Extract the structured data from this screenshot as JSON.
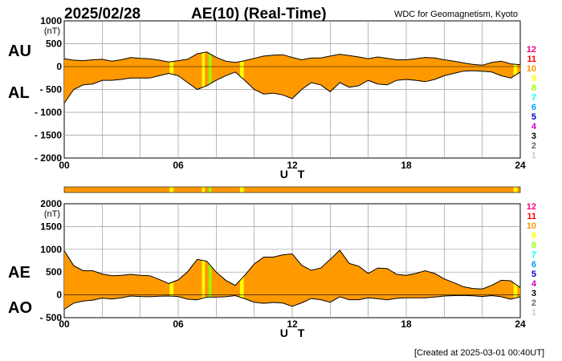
{
  "date": "2025/02/28",
  "title": "AE(10) (Real-Time)",
  "organization": "WDC for Geomagnetism, Kyoto",
  "footer": "[Created at 2025-03-01 00:40UT]",
  "x_axis_label": "U T",
  "x_tick_labels": [
    "00",
    "06",
    "12",
    "18",
    "24"
  ],
  "station_legend": [
    {
      "label": "12",
      "color": "#ff0080"
    },
    {
      "label": "11",
      "color": "#ff0000"
    },
    {
      "label": "10",
      "color": "#ff9900"
    },
    {
      "label": "9",
      "color": "#ffff00"
    },
    {
      "label": "8",
      "color": "#99ff00"
    },
    {
      "label": "7",
      "color": "#00ffff"
    },
    {
      "label": "6",
      "color": "#0099ff"
    },
    {
      "label": "5",
      "color": "#0000cc"
    },
    {
      "label": "4",
      "color": "#cc00cc"
    },
    {
      "label": "3",
      "color": "#000000"
    },
    {
      "label": "2",
      "color": "#666666"
    },
    {
      "label": "1",
      "color": "#cccccc"
    }
  ],
  "colors": {
    "fill_default": "#ff9900",
    "fill_alt": "#ffff00",
    "fill_alt2": "#99ff00",
    "line": "#000000"
  },
  "chart_data": [
    {
      "type": "area",
      "title": "AU / AL",
      "series_labels": [
        "AU",
        "AL"
      ],
      "unit_label": "(nT)",
      "xlabel": "U T",
      "xlim": [
        0,
        24
      ],
      "ylim": [
        -2000,
        1000
      ],
      "y_ticks": [
        1000,
        500,
        0,
        -500,
        -1000,
        -1500,
        -2000
      ],
      "y_tick_labels": [
        "1000",
        "500",
        "0",
        "- 500",
        "- 1000",
        "- 1500",
        "- 2000"
      ],
      "x": [
        0,
        0.5,
        1,
        1.5,
        2,
        2.5,
        3,
        3.5,
        4,
        4.5,
        5,
        5.5,
        6,
        6.5,
        7,
        7.5,
        8,
        8.5,
        9,
        9.5,
        10,
        10.5,
        11,
        11.5,
        12,
        12.5,
        13,
        13.5,
        14,
        14.5,
        15,
        15.5,
        16,
        16.5,
        17,
        17.5,
        18,
        18.5,
        19,
        19.5,
        20,
        20.5,
        21,
        21.5,
        22,
        22.5,
        23,
        23.5,
        24
      ],
      "series": [
        {
          "name": "AU",
          "values": [
            170,
            140,
            130,
            150,
            160,
            120,
            150,
            200,
            180,
            170,
            140,
            100,
            130,
            160,
            280,
            320,
            200,
            120,
            90,
            130,
            180,
            230,
            250,
            260,
            200,
            150,
            190,
            190,
            230,
            270,
            240,
            210,
            170,
            210,
            180,
            150,
            150,
            170,
            200,
            190,
            150,
            120,
            80,
            50,
            30,
            90,
            120,
            60,
            40
          ]
        },
        {
          "name": "AL",
          "values": [
            -800,
            -500,
            -400,
            -380,
            -300,
            -300,
            -280,
            -250,
            -250,
            -250,
            -200,
            -150,
            -200,
            -350,
            -500,
            -420,
            -300,
            -200,
            -120,
            -300,
            -500,
            -600,
            -580,
            -620,
            -700,
            -500,
            -350,
            -400,
            -550,
            -350,
            -450,
            -420,
            -300,
            -380,
            -400,
            -300,
            -280,
            -300,
            -330,
            -280,
            -200,
            -150,
            -100,
            -90,
            -100,
            -120,
            -200,
            -250,
            -120
          ]
        }
      ]
    },
    {
      "type": "area",
      "title": "AE / AO",
      "series_labels": [
        "AE",
        "AO"
      ],
      "unit_label": "(nT)",
      "xlabel": "U T",
      "xlim": [
        0,
        24
      ],
      "ylim": [
        -500,
        2000
      ],
      "y_ticks": [
        2000,
        1500,
        1000,
        500,
        0,
        -500
      ],
      "y_tick_labels": [
        "2000",
        "1500",
        "1000",
        "500",
        "0",
        "- 500"
      ],
      "x": [
        0,
        0.5,
        1,
        1.5,
        2,
        2.5,
        3,
        3.5,
        4,
        4.5,
        5,
        5.5,
        6,
        6.5,
        7,
        7.5,
        8,
        8.5,
        9,
        9.5,
        10,
        10.5,
        11,
        11.5,
        12,
        12.5,
        13,
        13.5,
        14,
        14.5,
        15,
        15.5,
        16,
        16.5,
        17,
        17.5,
        18,
        18.5,
        19,
        19.5,
        20,
        20.5,
        21,
        21.5,
        22,
        22.5,
        23,
        23.5,
        24
      ],
      "series": [
        {
          "name": "AE",
          "values": [
            970,
            640,
            530,
            530,
            460,
            420,
            430,
            450,
            430,
            420,
            340,
            250,
            330,
            510,
            780,
            740,
            500,
            320,
            210,
            430,
            680,
            830,
            830,
            880,
            900,
            650,
            540,
            590,
            780,
            980,
            690,
            630,
            470,
            590,
            580,
            450,
            430,
            470,
            530,
            470,
            350,
            270,
            180,
            140,
            130,
            210,
            320,
            310,
            160
          ]
        },
        {
          "name": "AO",
          "values": [
            -315,
            -180,
            -135,
            -115,
            -70,
            -90,
            -65,
            -25,
            -35,
            -40,
            -30,
            -25,
            -35,
            -95,
            -110,
            -50,
            -50,
            -40,
            -15,
            -85,
            -160,
            -185,
            -165,
            -180,
            -250,
            -175,
            -80,
            -105,
            -160,
            -40,
            -105,
            -105,
            -65,
            -85,
            -110,
            -75,
            -65,
            -65,
            -65,
            -45,
            -25,
            -15,
            -10,
            -20,
            -35,
            -15,
            -40,
            -95,
            -40
          ]
        }
      ]
    }
  ],
  "highlights": [
    {
      "start": 5.55,
      "end": 5.75,
      "color": "#ffff00"
    },
    {
      "start": 7.25,
      "end": 7.4,
      "color": "#ffff00"
    },
    {
      "start": 7.6,
      "end": 7.75,
      "color": "#99ff00"
    },
    {
      "start": 9.25,
      "end": 9.45,
      "color": "#ffff00"
    },
    {
      "start": 23.65,
      "end": 23.85,
      "color": "#ffff00"
    }
  ]
}
